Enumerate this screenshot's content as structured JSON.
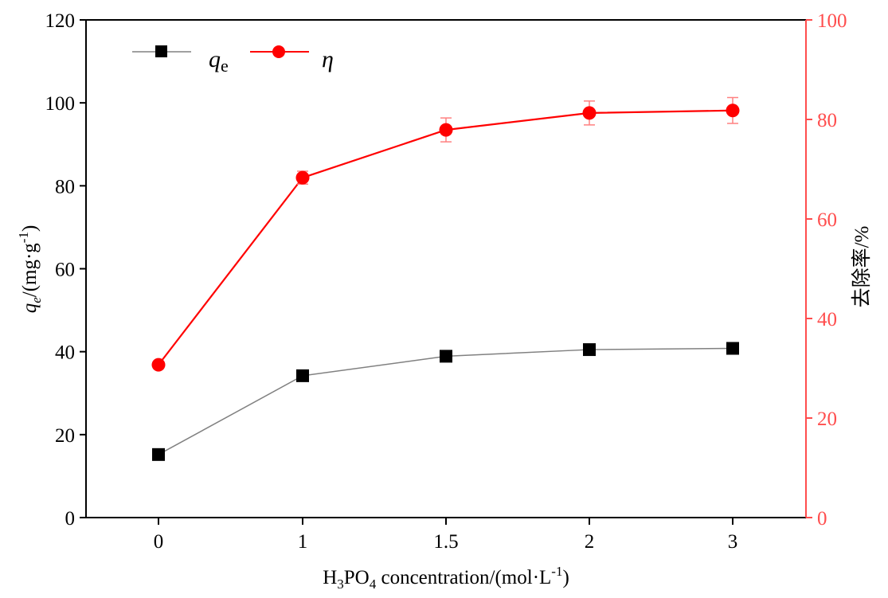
{
  "chart_data": {
    "type": "line",
    "categories": [
      "0",
      "1",
      "1.5",
      "2",
      "3"
    ],
    "series": [
      {
        "name": "qe",
        "axis": "left",
        "marker": "square",
        "color": "#000000",
        "line_color": "#808080",
        "values": [
          15.2,
          34.2,
          38.9,
          40.5,
          40.8
        ]
      },
      {
        "name": "η",
        "axis": "right",
        "marker": "circle",
        "color": "#ff0000",
        "line_color": "#ff0000",
        "values": [
          30.7,
          68.3,
          77.9,
          81.3,
          81.8
        ],
        "errors": [
          0,
          1.3,
          2.4,
          2.4,
          2.6
        ]
      }
    ],
    "xlabel": {
      "main": "H",
      "sub1": "3",
      "mid": "PO",
      "sub2": "4",
      "rest": " concentration/(mol·L",
      "sup": "-1",
      "end": ")"
    },
    "ylabel_left": {
      "q": "q",
      "sub": "e",
      "unit": "/(mg·g",
      "sup": "-1",
      "end": ")"
    },
    "ylabel_right": "去除率/%",
    "ylim_left": [
      0,
      120
    ],
    "yticks_left": [
      0,
      20,
      40,
      60,
      80,
      100,
      120
    ],
    "ylim_right": [
      0,
      100
    ],
    "yticks_right": [
      0,
      20,
      40,
      60,
      80,
      100
    ],
    "legend": {
      "position": "top-left",
      "qe_main": "q",
      "qe_sub": "e",
      "eta_label": "η"
    },
    "right_axis_color": "#ff4d4d"
  }
}
